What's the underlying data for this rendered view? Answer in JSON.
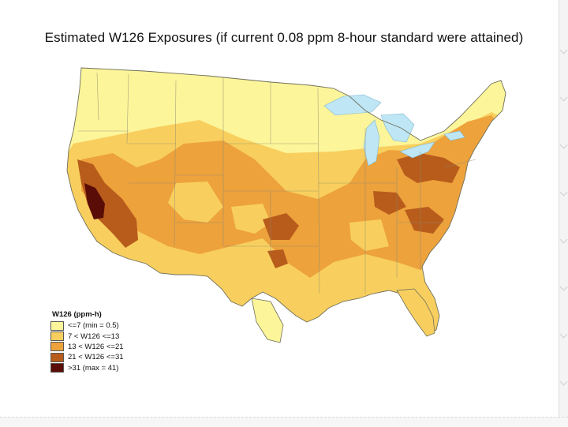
{
  "title": "Estimated W126 Exposures (if current 0.08 ppm 8-hour standard were attained)",
  "legend": {
    "title": "W126 (ppm-h)",
    "items": [
      {
        "label": "<=7   (min = 0.5)",
        "color": "#fdf59a"
      },
      {
        "label": "7 < W126 <=13",
        "color": "#f8cf5e"
      },
      {
        "label": "13 < W126 <=21",
        "color": "#eda23c"
      },
      {
        "label": "21 < W126 <=31",
        "color": "#b85c1c"
      },
      {
        "label": ">31   (max = 41)",
        "color": "#5a0d06"
      }
    ]
  },
  "colors": {
    "water": "#bfe6f5",
    "boundary": "#8a8a70"
  }
}
